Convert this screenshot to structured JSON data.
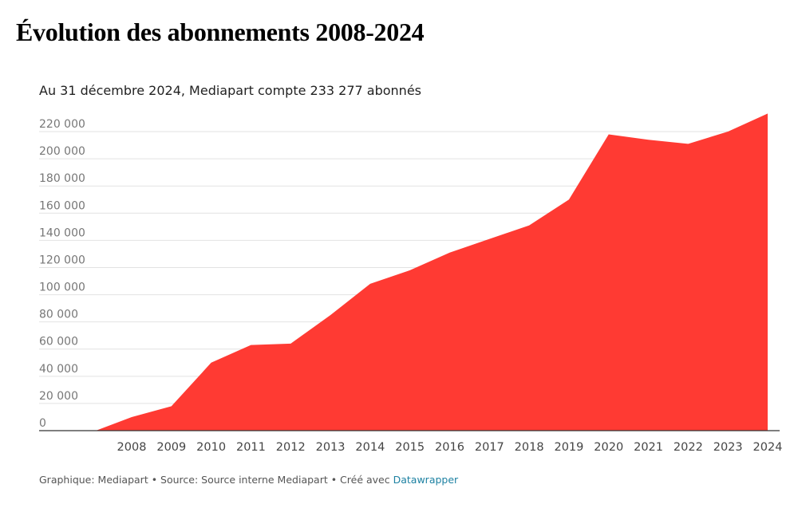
{
  "page": {
    "title": "Évolution des abonnements 2008-2024"
  },
  "chart_data": {
    "type": "area",
    "subtitle": "Au 31 décembre 2024, Mediapart compte 233 277 abonnés",
    "xlabel": "",
    "ylabel": "",
    "x": [
      "2008",
      "2009",
      "2010",
      "2011",
      "2012",
      "2013",
      "2014",
      "2015",
      "2016",
      "2017",
      "2018",
      "2019",
      "2020",
      "2021",
      "2022",
      "2023",
      "2024"
    ],
    "values": [
      10000,
      18000,
      50000,
      63000,
      64000,
      85000,
      108000,
      118000,
      131000,
      141000,
      151000,
      170000,
      218000,
      214000,
      211000,
      220000,
      233277
    ],
    "start": {
      "x": 2007.1,
      "value": 0
    },
    "ylim": [
      0,
      230000
    ],
    "yticks": [
      0,
      20000,
      40000,
      60000,
      80000,
      100000,
      120000,
      140000,
      160000,
      180000,
      200000,
      220000
    ],
    "ytick_labels": [
      "0",
      "20 000",
      "40 000",
      "60 000",
      "80 000",
      "100 000",
      "120 000",
      "140 000",
      "160 000",
      "180 000",
      "200 000",
      "220 000"
    ],
    "grid": true,
    "legend": "none",
    "colors": {
      "area": "#ff3a33",
      "grid": "#e2e2e2",
      "baseline": "#333333"
    }
  },
  "footer": {
    "prefix": "Graphique: Mediapart • Source: Source interne Mediapart • Créé avec ",
    "link": "Datawrapper"
  }
}
